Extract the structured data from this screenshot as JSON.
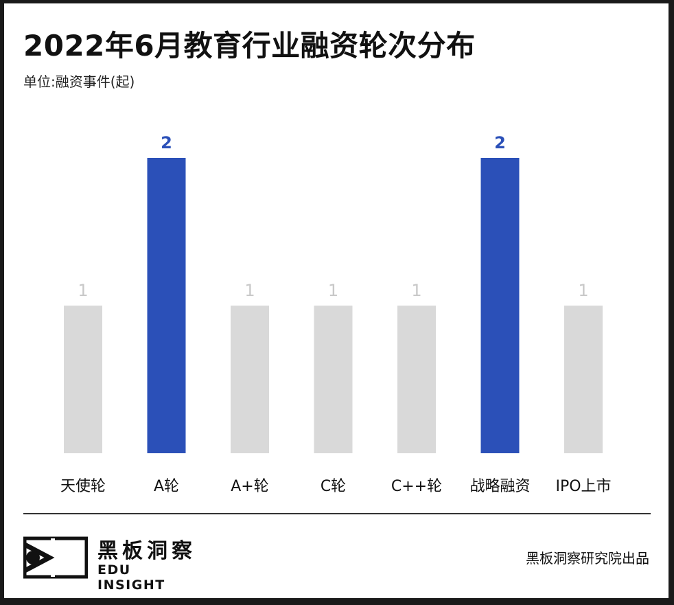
{
  "header": {
    "title": "2022年6月教育行业融资轮次分布",
    "unit": "单位:融资事件(起)"
  },
  "chart_data": {
    "type": "bar",
    "title": "2022年6月教育行业融资轮次分布",
    "ylabel": "单位:融资事件(起)",
    "categories": [
      "天使轮",
      "A轮",
      "A+轮",
      "C轮",
      "C++轮",
      "战略融资",
      "IPO上市"
    ],
    "values": [
      1,
      2,
      1,
      1,
      1,
      2,
      1
    ],
    "ylim": [
      0,
      2
    ],
    "grid": false,
    "colors": {
      "highlight": "#2b50b8",
      "normal": "#d9d9d9",
      "highlight_label": "#2b50b8",
      "normal_label": "#c8c8c8",
      "category_label": "#111111"
    }
  },
  "footer": {
    "logo_cn": "黑板洞察",
    "logo_en": "EDU INSIGHT",
    "logo_icon": "edu-insight-logo-icon",
    "credit": "黑板洞察研究院出品"
  }
}
